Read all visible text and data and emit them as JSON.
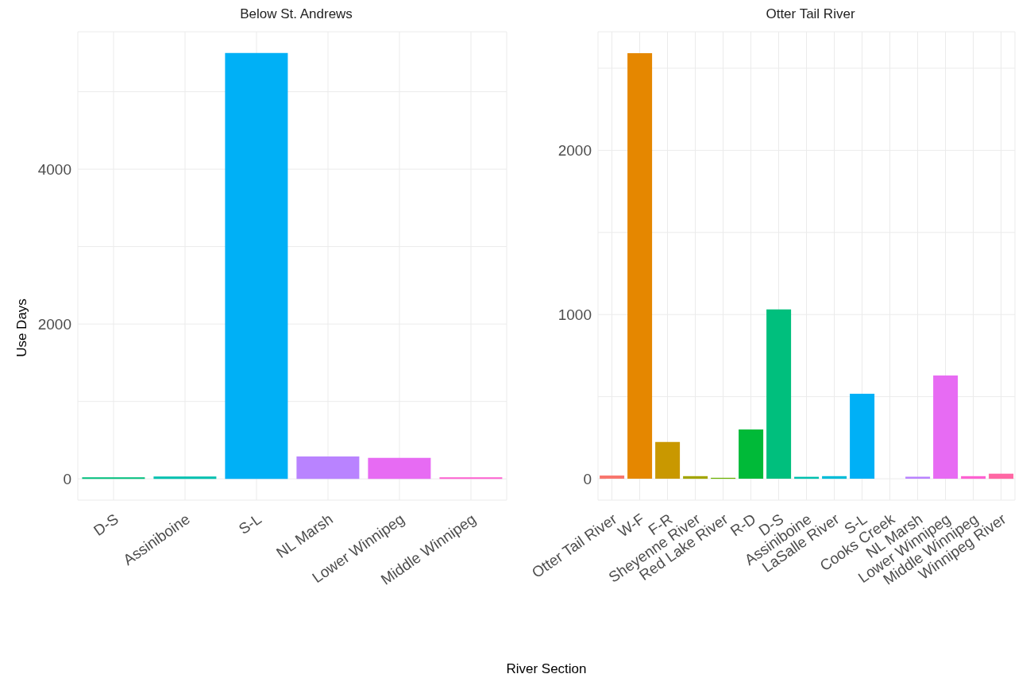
{
  "chart_data": [
    {
      "type": "bar",
      "title": "Below St. Andrews",
      "ylabel": "Use Days",
      "xlabel": "River Section",
      "categories": [
        "D-S",
        "Assiniboine",
        "S-L",
        "NL Marsh",
        "Lower Winnipeg",
        "Middle Winnipeg"
      ],
      "values": [
        20,
        30,
        5500,
        290,
        270,
        20
      ],
      "colors": [
        "#00bf7d",
        "#00c0af",
        "#00b0f6",
        "#b983ff",
        "#e76bf3",
        "#fd61d1"
      ],
      "ylim": [
        -275,
        5775
      ],
      "yticks": [
        0,
        {
          "value": 1000,
          "label": null
        },
        2000,
        {
          "value": 3000,
          "label": null
        },
        4000,
        {
          "value": 5000,
          "label": null
        }
      ],
      "grid": true
    },
    {
      "type": "bar",
      "title": "Otter Tail River",
      "categories": [
        "Otter Tail River",
        "W-F",
        "F-R",
        "Sheyenne River",
        "Red Lake River",
        "R-D",
        "D-S",
        "Assiniboine",
        "LaSalle River",
        "S-L",
        "Cooks Creek",
        "NL Marsh",
        "Lower Winnipeg",
        "Middle Winnipeg",
        "Winnipeg River"
      ],
      "values": [
        20,
        2592,
        224,
        16,
        6,
        300,
        1031,
        12,
        16,
        518,
        0,
        12,
        629,
        16,
        31
      ],
      "colors": [
        "#f8766d",
        "#e58700",
        "#c99800",
        "#a3a500",
        "#6bb100",
        "#00ba38",
        "#00bf7d",
        "#00c0af",
        "#00bcd8",
        "#00b0f6",
        "#619cff",
        "#b983ff",
        "#e76bf3",
        "#fd61d1",
        "#ff67a4"
      ],
      "ylim": [
        -130,
        2722
      ],
      "yticks": [
        0,
        {
          "value": 500,
          "label": null
        },
        1000,
        {
          "value": 1500,
          "label": null
        },
        2000,
        {
          "value": 2500,
          "label": null
        }
      ],
      "grid": true
    }
  ]
}
